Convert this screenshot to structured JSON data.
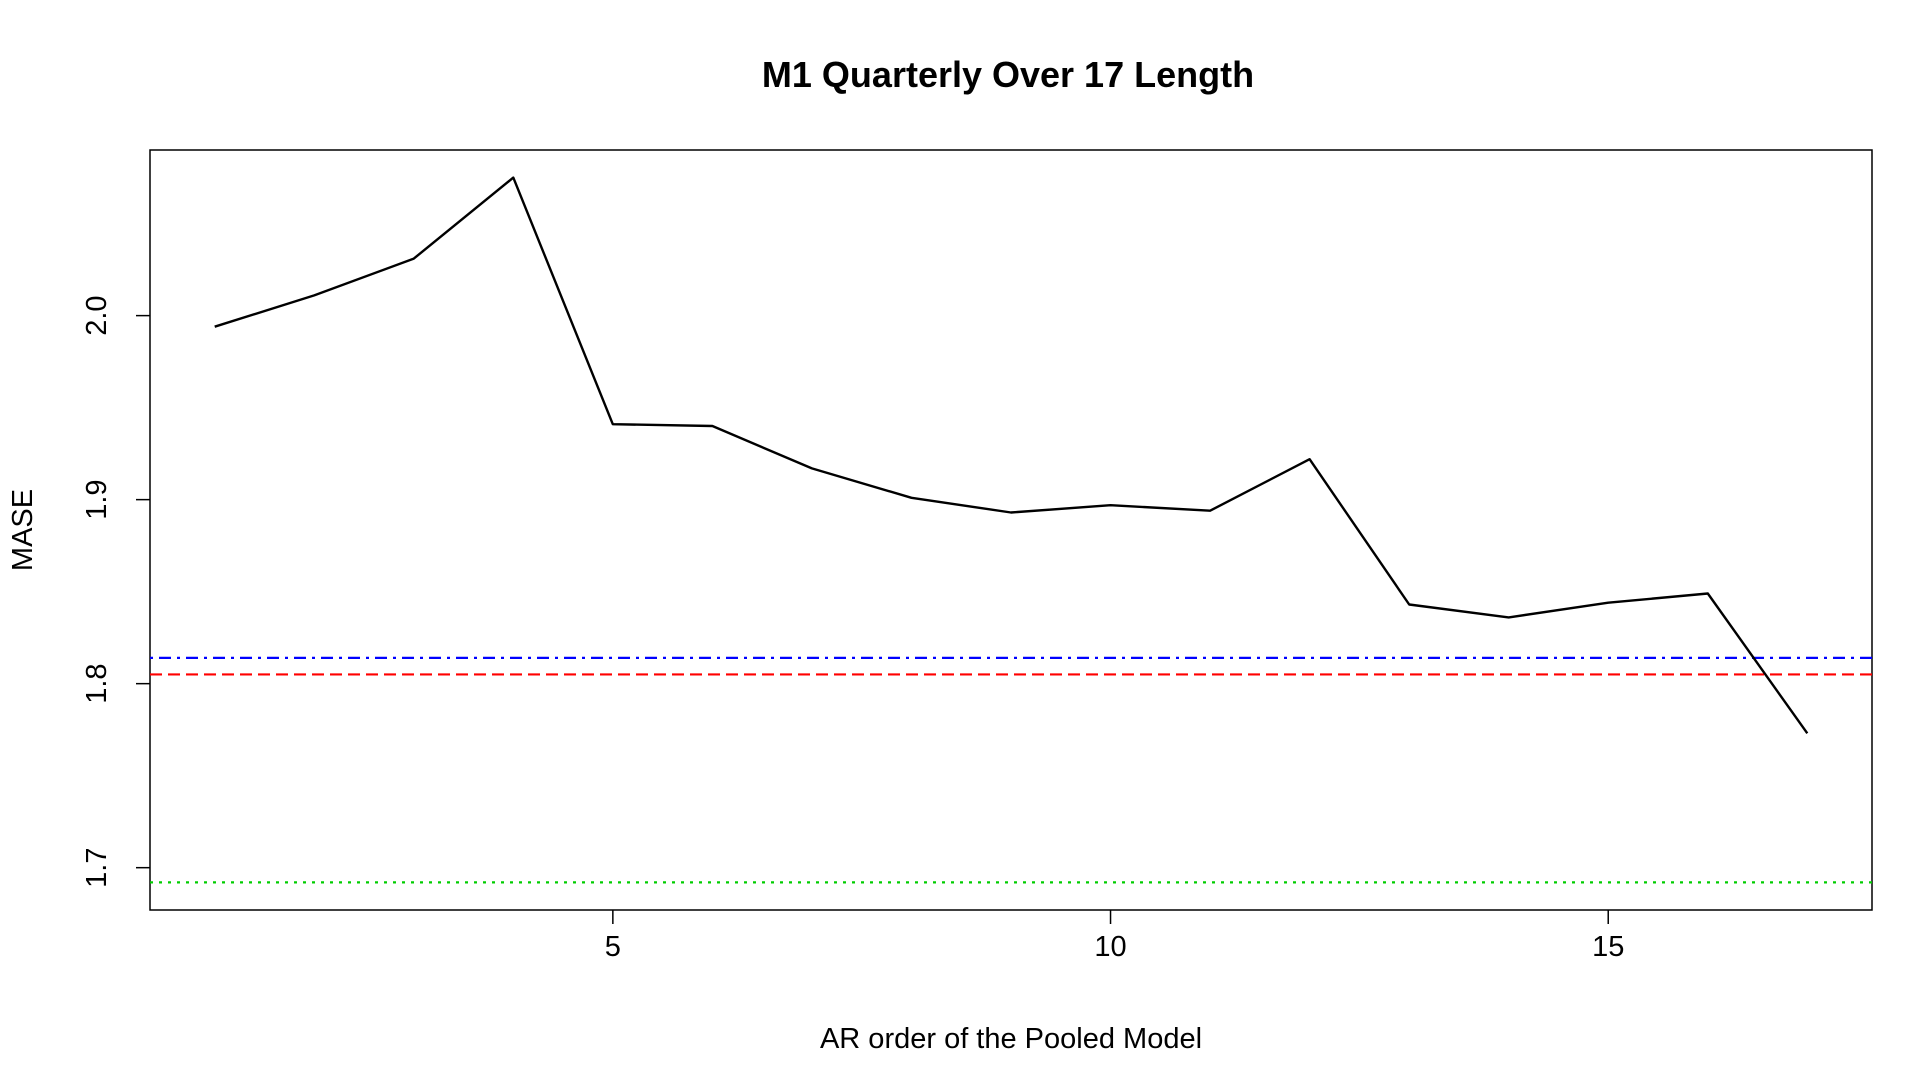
{
  "chart_data": {
    "type": "line",
    "title": "M1 Quarterly Over 17 Length",
    "xlabel": "AR order of the Pooled Model",
    "ylabel": "MASE",
    "xlim": [
      0.35,
      17.65
    ],
    "ylim": [
      1.677,
      2.09
    ],
    "x_ticks": [
      5,
      10,
      15
    ],
    "y_ticks": [
      1.7,
      1.8,
      1.9,
      2.0
    ],
    "x_tick_labels": [
      "5",
      "10",
      "15"
    ],
    "y_tick_labels": [
      "1.7",
      "1.8",
      "1.9",
      "2.0"
    ],
    "grid": false,
    "legend": null,
    "series": [
      {
        "color": "#000000",
        "style": "solid",
        "x": [
          1,
          2,
          3,
          4,
          5,
          6,
          7,
          8,
          9,
          10,
          11,
          12,
          13,
          14,
          15,
          16,
          17
        ],
        "values": [
          1.994,
          2.011,
          2.031,
          2.075,
          1.941,
          1.94,
          1.917,
          1.901,
          1.893,
          1.897,
          1.894,
          1.922,
          1.843,
          1.836,
          1.844,
          1.849,
          1.773
        ]
      }
    ],
    "reference_lines": [
      {
        "y": 1.814,
        "color": "#0000ff",
        "style": "dotdash"
      },
      {
        "y": 1.805,
        "color": "#ff0000",
        "style": "dashed"
      },
      {
        "y": 1.692,
        "color": "#00cd00",
        "style": "dotted"
      }
    ]
  }
}
